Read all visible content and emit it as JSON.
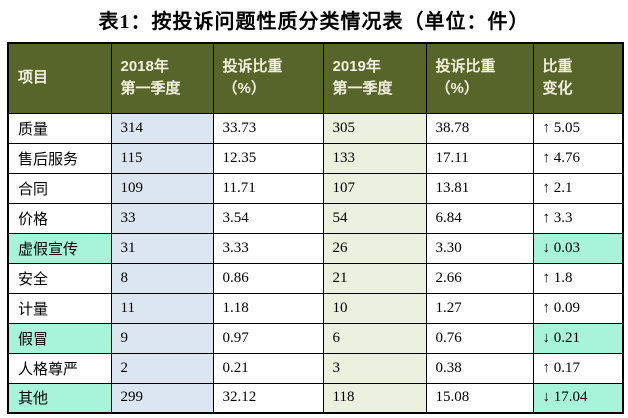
{
  "title": "表1：按投诉问题性质分类情况表（单位：件）",
  "chart_data": {
    "type": "table",
    "title": "表1：按投诉问题性质分类情况表（单位：件）",
    "unit": "件",
    "columns": [
      "项目",
      "2018年第一季度",
      "投诉比重（%）",
      "2019年第一季度",
      "投诉比重（%）",
      "比重变化"
    ],
    "columns_display": [
      "项目",
      "2018年\n第一季度",
      "投诉比重\n（%）",
      "2019年\n第一季度",
      "投诉比重\n（%）",
      "比重\n变化"
    ],
    "rows": [
      {
        "item": "质量",
        "v2018": "314",
        "p2018": "33.73",
        "v2019": "305",
        "p2019": "38.78",
        "change": "↑ 5.05",
        "trend": "up"
      },
      {
        "item": "售后服务",
        "v2018": "115",
        "p2018": "12.35",
        "v2019": "133",
        "p2019": "17.11",
        "change": "↑ 4.76",
        "trend": "up"
      },
      {
        "item": "合同",
        "v2018": "109",
        "p2018": "11.71",
        "v2019": "107",
        "p2019": "13.81",
        "change": "↑ 2.1",
        "trend": "up"
      },
      {
        "item": "价格",
        "v2018": "33",
        "p2018": "3.54",
        "v2019": "54",
        "p2019": "6.84",
        "change": "↑ 3.3",
        "trend": "up"
      },
      {
        "item": "虚假宣传",
        "v2018": "31",
        "p2018": "3.33",
        "v2019": "26",
        "p2019": "3.30",
        "change": "↓ 0.03",
        "trend": "down"
      },
      {
        "item": "安全",
        "v2018": "8",
        "p2018": "0.86",
        "v2019": "21",
        "p2019": "2.66",
        "change": "↑ 1.8",
        "trend": "up"
      },
      {
        "item": "计量",
        "v2018": "11",
        "p2018": "1.18",
        "v2019": "10",
        "p2019": "1.27",
        "change": "↑ 0.09",
        "trend": "up"
      },
      {
        "item": "假冒",
        "v2018": "9",
        "p2018": "0.97",
        "v2019": "6",
        "p2019": "0.76",
        "change": "↓ 0.21",
        "trend": "down"
      },
      {
        "item": "人格尊严",
        "v2018": "2",
        "p2018": "0.21",
        "v2019": "3",
        "p2019": "0.38",
        "change": "↑ 0.17",
        "trend": "up"
      },
      {
        "item": "其他",
        "v2018": "299",
        "p2018": "32.12",
        "v2019": "118",
        "p2019": "15.08",
        "change": "↓ 17.04",
        "trend": "down"
      }
    ]
  },
  "colors": {
    "title_color": "#000000",
    "header_bg": "#57652B",
    "header_text": "#F2EFDF",
    "col_2018_bg": "#DCE6F1",
    "col_2019_bg": "#EBF1DE",
    "highlight_bg": "#A7F4DB",
    "border_color": "#000000"
  }
}
